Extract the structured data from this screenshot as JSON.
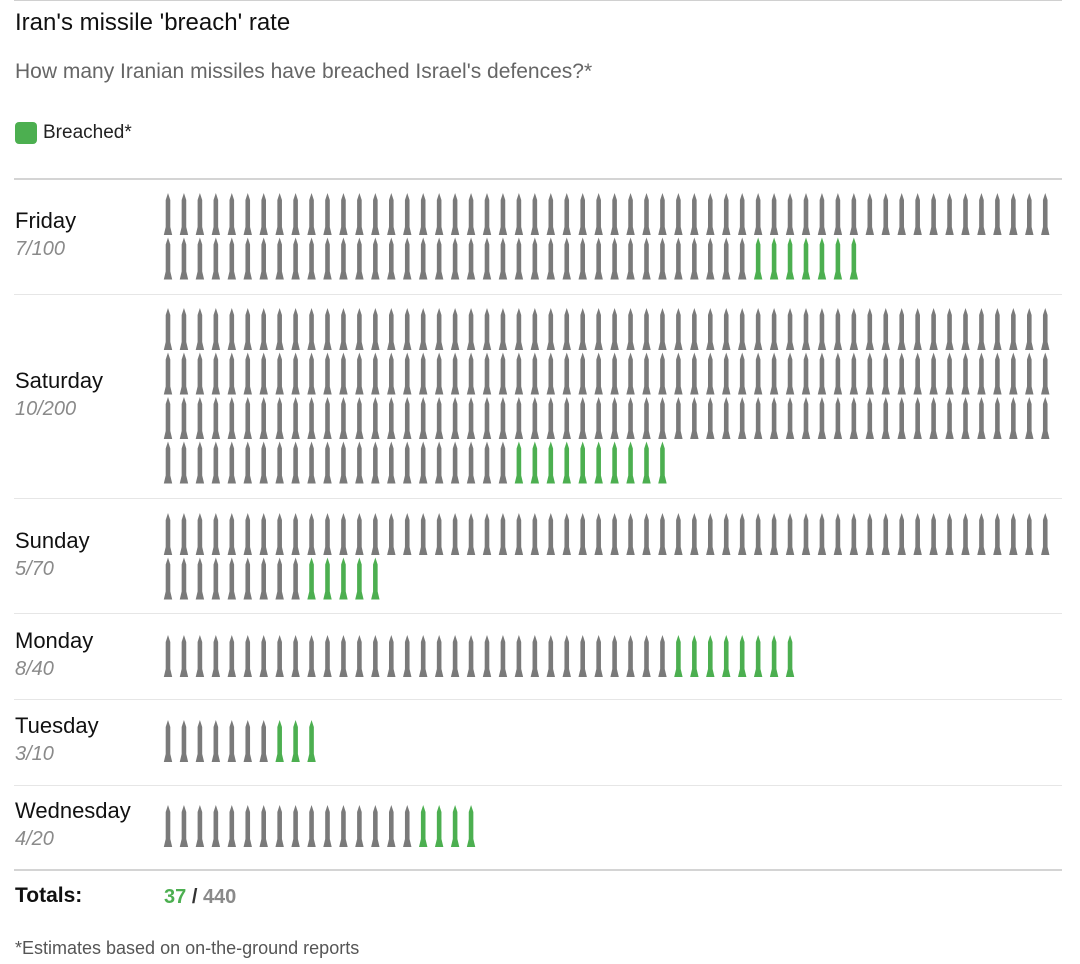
{
  "title": "Iran's missile 'breach' rate",
  "subtitle": "How many Iranian missiles have breached Israel's defences?*",
  "legend": {
    "label": "Breached*",
    "color": "#4caf50"
  },
  "colors": {
    "breached": "#4caf50",
    "intercepted": "#7a7a7a"
  },
  "chart_data": {
    "type": "table",
    "title": "Iran's missile 'breach' rate",
    "subtitle": "How many Iranian missiles have breached Israel's defences?*",
    "units_per_row": 56,
    "days": [
      {
        "day": "Friday",
        "ratio": "7/100",
        "breached": 7,
        "total": 100
      },
      {
        "day": "Saturday",
        "ratio": "10/200",
        "breached": 10,
        "total": 200
      },
      {
        "day": "Sunday",
        "ratio": "5/70",
        "breached": 5,
        "total": 70
      },
      {
        "day": "Monday",
        "ratio": "8/40",
        "breached": 8,
        "total": 40
      },
      {
        "day": "Tuesday",
        "ratio": "3/10",
        "breached": 3,
        "total": 10
      },
      {
        "day": "Wednesday",
        "ratio": "4/20",
        "breached": 4,
        "total": 20
      }
    ]
  },
  "totals": {
    "label": "Totals:",
    "breached": "37",
    "separator": "/",
    "total": "440"
  },
  "footnote": "*Estimates based on on-the-ground reports"
}
